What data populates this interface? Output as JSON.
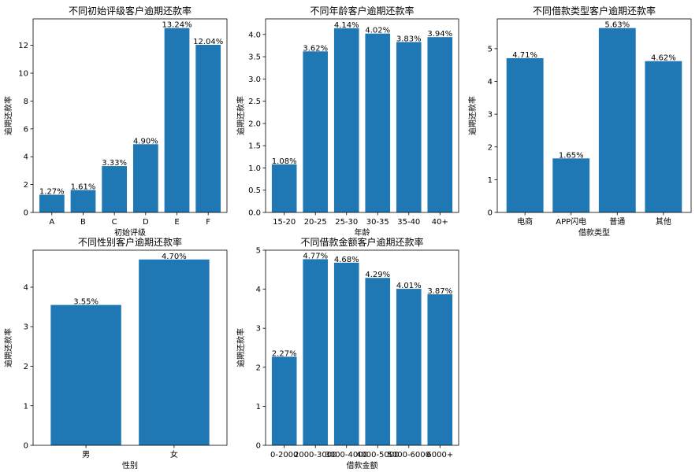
{
  "chart_data": [
    {
      "type": "bar",
      "title": "不同初始评级客户逾期还款率",
      "xlabel": "初始评级",
      "ylabel": "逾期还款率",
      "categories": [
        "A",
        "B",
        "C",
        "D",
        "E",
        "F"
      ],
      "values": [
        1.27,
        1.61,
        3.33,
        4.9,
        13.24,
        12.04
      ],
      "data_labels": [
        "1.27%",
        "1.61%",
        "3.33%",
        "4.90%",
        "13.24%",
        "12.04%"
      ],
      "ylim": [
        0,
        13.9
      ],
      "yticks": [
        0,
        2,
        4,
        6,
        8,
        10,
        12
      ],
      "ytick_labels": [
        "0",
        "2",
        "4",
        "6",
        "8",
        "10",
        "12"
      ],
      "color": "#1f77b4"
    },
    {
      "type": "bar",
      "title": "不同年龄客户逾期还款率",
      "xlabel": "年龄",
      "ylabel": "逾期还款率",
      "categories": [
        "15-20",
        "20-25",
        "25-30",
        "30-35",
        "35-40",
        "40+"
      ],
      "values": [
        1.08,
        3.62,
        4.14,
        4.02,
        3.83,
        3.94
      ],
      "data_labels": [
        "1.08%",
        "3.62%",
        "4.14%",
        "4.02%",
        "3.83%",
        "3.94%"
      ],
      "ylim": [
        0,
        4.35
      ],
      "yticks": [
        0,
        0.5,
        1.0,
        1.5,
        2.0,
        2.5,
        3.0,
        3.5,
        4.0
      ],
      "ytick_labels": [
        "0.0",
        "0.5",
        "1.0",
        "1.5",
        "2.0",
        "2.5",
        "3.0",
        "3.5",
        "4.0"
      ],
      "color": "#1f77b4"
    },
    {
      "type": "bar",
      "title": "不同借款类型客户逾期还款率",
      "xlabel": "借款类型",
      "ylabel": "逾期还款率",
      "categories": [
        "电商",
        "APP闪电",
        "普通",
        "其他"
      ],
      "values": [
        4.71,
        1.65,
        5.63,
        4.62
      ],
      "data_labels": [
        "4.71%",
        "1.65%",
        "5.63%",
        "4.62%"
      ],
      "ylim": [
        0,
        5.91
      ],
      "yticks": [
        0,
        1,
        2,
        3,
        4,
        5
      ],
      "ytick_labels": [
        "0",
        "1",
        "2",
        "3",
        "4",
        "5"
      ],
      "color": "#1f77b4"
    },
    {
      "type": "bar",
      "title": "不同性别客户逾期还款率",
      "xlabel": "性别",
      "ylabel": "逾期还款率",
      "categories": [
        "男",
        "女"
      ],
      "values": [
        3.55,
        4.7
      ],
      "data_labels": [
        "3.55%",
        "4.70%"
      ],
      "ylim": [
        0,
        4.935
      ],
      "yticks": [
        0,
        1,
        2,
        3,
        4
      ],
      "ytick_labels": [
        "0",
        "1",
        "2",
        "3",
        "4"
      ],
      "color": "#1f77b4"
    },
    {
      "type": "bar",
      "title": "不同借款金额客户逾期还款率",
      "xlabel": "借款金额",
      "ylabel": "逾期还款率",
      "categories": [
        "0-2000",
        "2000-3000",
        "3000-4000",
        "4000-5000",
        "5000-6000",
        "6000+"
      ],
      "values": [
        2.27,
        4.77,
        4.68,
        4.29,
        4.01,
        3.87
      ],
      "data_labels": [
        "2.27%",
        "4.77%",
        "4.68%",
        "4.29%",
        "4.01%",
        "3.87%"
      ],
      "ylim": [
        0,
        5.0
      ],
      "yticks": [
        0,
        1,
        2,
        3,
        4,
        5
      ],
      "ytick_labels": [
        "0",
        "1",
        "2",
        "3",
        "4",
        "5"
      ],
      "color": "#1f77b4"
    }
  ]
}
